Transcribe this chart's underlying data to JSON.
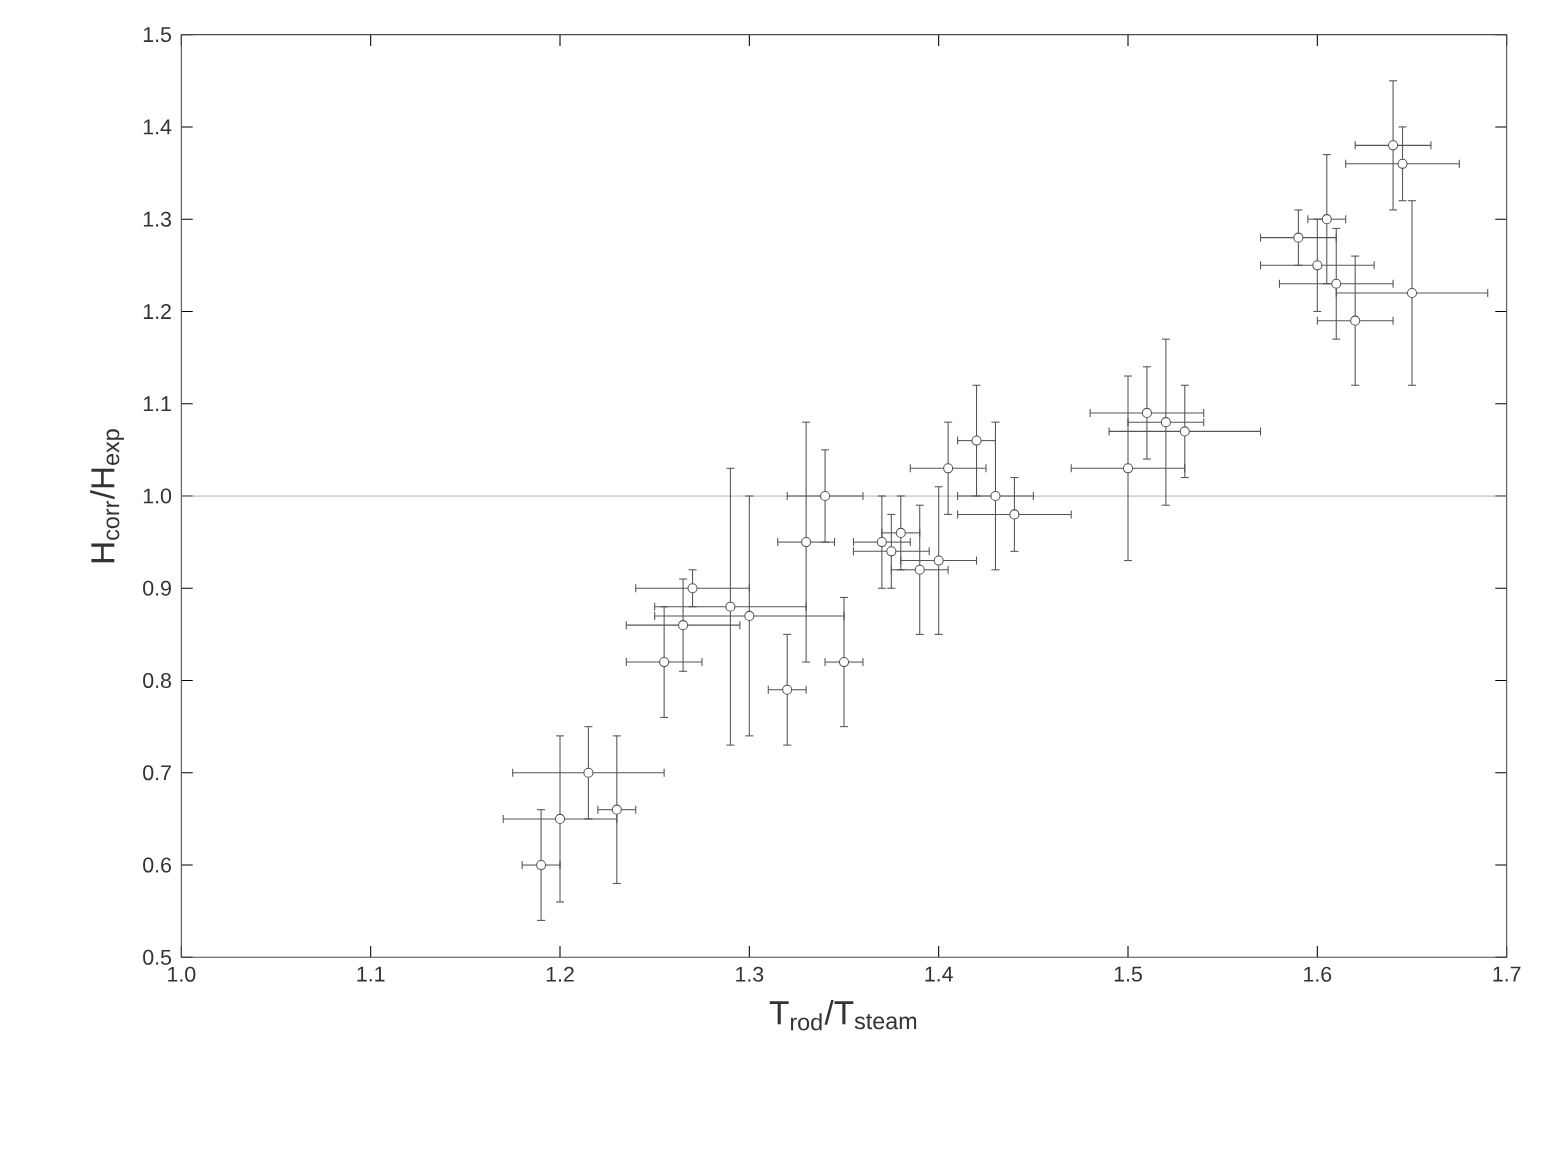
{
  "chart_data": {
    "type": "scatter",
    "xlabel": "T$_{rod}$/T$_{steam}$",
    "ylabel": "H$_{corr}$/H$_{exp}$",
    "x": [
      1.19,
      1.2,
      1.215,
      1.23,
      1.255,
      1.265,
      1.27,
      1.29,
      1.3,
      1.32,
      1.33,
      1.34,
      1.35,
      1.37,
      1.375,
      1.38,
      1.39,
      1.4,
      1.405,
      1.42,
      1.43,
      1.44,
      1.5,
      1.51,
      1.52,
      1.53,
      1.59,
      1.6,
      1.605,
      1.61,
      1.62,
      1.64,
      1.645,
      1.65
    ],
    "values": [
      0.6,
      0.65,
      0.7,
      0.66,
      0.82,
      0.86,
      0.9,
      0.88,
      0.87,
      0.79,
      0.95,
      1.0,
      0.82,
      0.95,
      0.94,
      0.96,
      0.92,
      0.93,
      1.03,
      1.06,
      1.0,
      0.98,
      1.03,
      1.09,
      1.08,
      1.07,
      1.28,
      1.25,
      1.3,
      1.23,
      1.19,
      1.38,
      1.36,
      1.22
    ],
    "xerrors": [
      0.01,
      0.03,
      0.04,
      0.01,
      0.02,
      0.03,
      0.03,
      0.04,
      0.05,
      0.01,
      0.015,
      0.02,
      0.01,
      0.015,
      0.02,
      0.01,
      0.015,
      0.02,
      0.02,
      0.01,
      0.02,
      0.03,
      0.03,
      0.03,
      0.02,
      0.04,
      0.02,
      0.03,
      0.01,
      0.03,
      0.02,
      0.02,
      0.03,
      0.04
    ],
    "errors": [
      0.06,
      0.09,
      0.05,
      0.08,
      0.06,
      0.05,
      0.02,
      0.15,
      0.13,
      0.06,
      0.13,
      0.05,
      0.07,
      0.05,
      0.04,
      0.04,
      0.07,
      0.08,
      0.05,
      0.06,
      0.08,
      0.04,
      0.1,
      0.05,
      0.09,
      0.05,
      0.03,
      0.05,
      0.07,
      0.06,
      0.07,
      0.07,
      0.04,
      0.1
    ],
    "color": "#555555",
    "grid": false,
    "xlim": [
      1.0,
      1.7
    ],
    "ylim": [
      0.5,
      1.5
    ],
    "xticks": [
      {
        "value": 1.0,
        "label": "1.0"
      },
      {
        "value": 1.1,
        "label": "1.1"
      },
      {
        "value": 1.2,
        "label": "1.2"
      },
      {
        "value": 1.3,
        "label": "1.3"
      },
      {
        "value": 1.4,
        "label": "1.4"
      },
      {
        "value": 1.5,
        "label": "1.5"
      },
      {
        "value": 1.6,
        "label": "1.6"
      },
      {
        "value": 1.7,
        "label": "1.7"
      }
    ],
    "yticks": [
      {
        "value": 0.5,
        "label": "0.5"
      },
      {
        "value": 0.6,
        "label": "0.6"
      },
      {
        "value": 0.7,
        "label": "0.7"
      },
      {
        "value": 0.8,
        "label": "0.8"
      },
      {
        "value": 0.9,
        "label": "0.9"
      },
      {
        "value": 1.0,
        "label": "1.0"
      },
      {
        "value": 1.1,
        "label": "1.1"
      },
      {
        "value": 1.2,
        "label": "1.2"
      },
      {
        "value": 1.3,
        "label": "1.3"
      },
      {
        "value": 1.4,
        "label": "1.4"
      },
      {
        "value": 1.5,
        "label": "1.5"
      }
    ],
    "ref_lines": [
      {
        "axis": "y",
        "value": 1.0,
        "color": "#aaaaaa"
      }
    ]
  }
}
